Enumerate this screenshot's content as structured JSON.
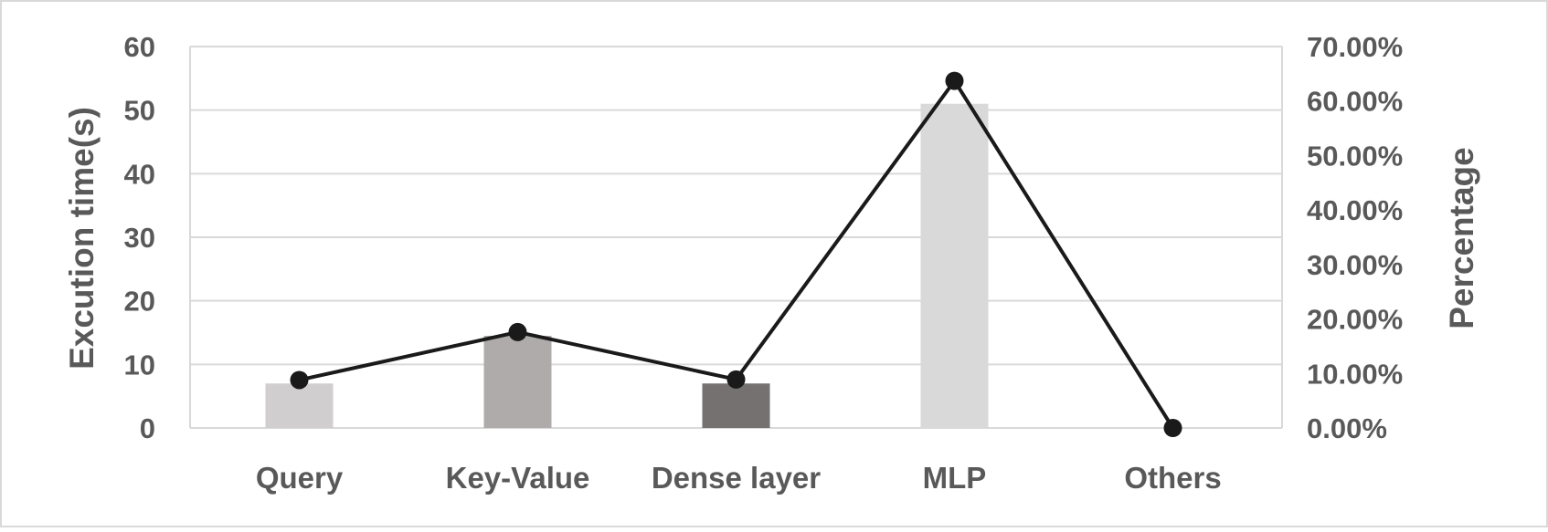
{
  "chart_data": {
    "type": "bar",
    "categories": [
      "Query",
      "Key-Value",
      "Dense layer",
      "MLP",
      "Others"
    ],
    "series": [
      {
        "type": "bar",
        "axis": "left",
        "values": [
          7,
          14.5,
          7,
          51,
          0
        ],
        "colors": [
          "#d0cece",
          "#afabab",
          "#767171",
          "#d9d9d9",
          "#d9d9d9"
        ]
      },
      {
        "type": "line",
        "axis": "right",
        "values": [
          0.088,
          0.176,
          0.089,
          0.637,
          0.0
        ],
        "color": "#1a1a1a"
      }
    ],
    "title": "",
    "xlabel": "",
    "ylabel": "Excution time(s)",
    "y2label": "Percentage",
    "ylim": [
      0,
      60
    ],
    "yticks": [
      "0",
      "10",
      "20",
      "30",
      "40",
      "50",
      "60"
    ],
    "y2lim": [
      0,
      0.7
    ],
    "y2ticks": [
      "0.00%",
      "10.00%",
      "20.00%",
      "30.00%",
      "40.00%",
      "50.00%",
      "60.00%",
      "70.00%"
    ],
    "grid": true,
    "legend": "none"
  }
}
